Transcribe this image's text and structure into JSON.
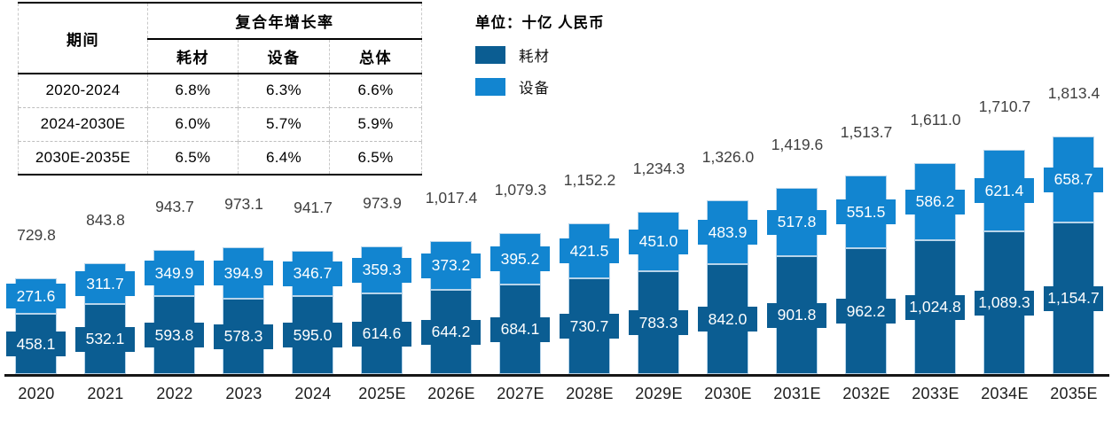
{
  "table": {
    "col_period": "期间",
    "col_cagr": "复合年增长率",
    "sub_cols": [
      "耗材",
      "设备",
      "总体"
    ],
    "rows": [
      {
        "period": "2020-2024",
        "consumables": "6.8%",
        "equipment": "6.3%",
        "overall": "6.6%"
      },
      {
        "period": "2024-2030E",
        "consumables": "6.0%",
        "equipment": "5.7%",
        "overall": "5.9%"
      },
      {
        "period": "2030E-2035E",
        "consumables": "6.5%",
        "equipment": "6.4%",
        "overall": "6.5%"
      }
    ]
  },
  "unit_label": "单位：十亿 人民币",
  "legend": [
    {
      "label": "耗材",
      "color": "#0b5d92"
    },
    {
      "label": "设备",
      "color": "#1285d0"
    }
  ],
  "colors": {
    "consumables": "#0b5d92",
    "equipment": "#1285d0",
    "bar_border": "#b7d4ea",
    "total_text": "#404040",
    "axis_line": "#161616"
  },
  "chart_data": {
    "type": "bar",
    "stacked": true,
    "title": "",
    "unit": "十亿 人民币",
    "legend_position": "top-left",
    "grid": false,
    "categories": [
      "2020",
      "2021",
      "2022",
      "2023",
      "2024",
      "2025E",
      "2026E",
      "2027E",
      "2028E",
      "2029E",
      "2030E",
      "2031E",
      "2032E",
      "2033E",
      "2034E",
      "2035E"
    ],
    "series": [
      {
        "name": "耗材",
        "color": "#0b5d92",
        "values": [
          458.1,
          532.1,
          593.8,
          578.3,
          595.0,
          614.6,
          644.2,
          684.1,
          730.7,
          783.3,
          842.0,
          901.8,
          962.2,
          1024.8,
          1089.3,
          1154.7
        ],
        "labels": [
          "458.1",
          "532.1",
          "593.8",
          "578.3",
          "595.0",
          "614.6",
          "644.2",
          "684.1",
          "730.7",
          "783.3",
          "842.0",
          "901.8",
          "962.2",
          "1,024.8",
          "1,089.3",
          "1,154.7"
        ]
      },
      {
        "name": "设备",
        "color": "#1285d0",
        "values": [
          271.6,
          311.7,
          349.9,
          394.9,
          346.7,
          359.3,
          373.2,
          395.2,
          421.5,
          451.0,
          483.9,
          517.8,
          551.5,
          586.2,
          621.4,
          658.7
        ],
        "labels": [
          "271.6",
          "311.7",
          "349.9",
          "394.9",
          "346.7",
          "359.3",
          "373.2",
          "395.2",
          "421.5",
          "451.0",
          "483.9",
          "517.8",
          "551.5",
          "586.2",
          "621.4",
          "658.7"
        ]
      }
    ],
    "totals": [
      729.8,
      843.8,
      943.7,
      973.1,
      941.7,
      973.9,
      1017.4,
      1079.3,
      1152.2,
      1234.3,
      1326.0,
      1419.6,
      1513.7,
      1611.0,
      1710.7,
      1813.4
    ],
    "total_labels": [
      "729.8",
      "843.8",
      "943.7",
      "973.1",
      "941.7",
      "973.9",
      "1,017.4",
      "1,079.3",
      "1,152.2",
      "1,234.3",
      "1,326.0",
      "1,419.6",
      "1,513.7",
      "1,611.0",
      "1,710.7",
      "1,813.4"
    ]
  }
}
